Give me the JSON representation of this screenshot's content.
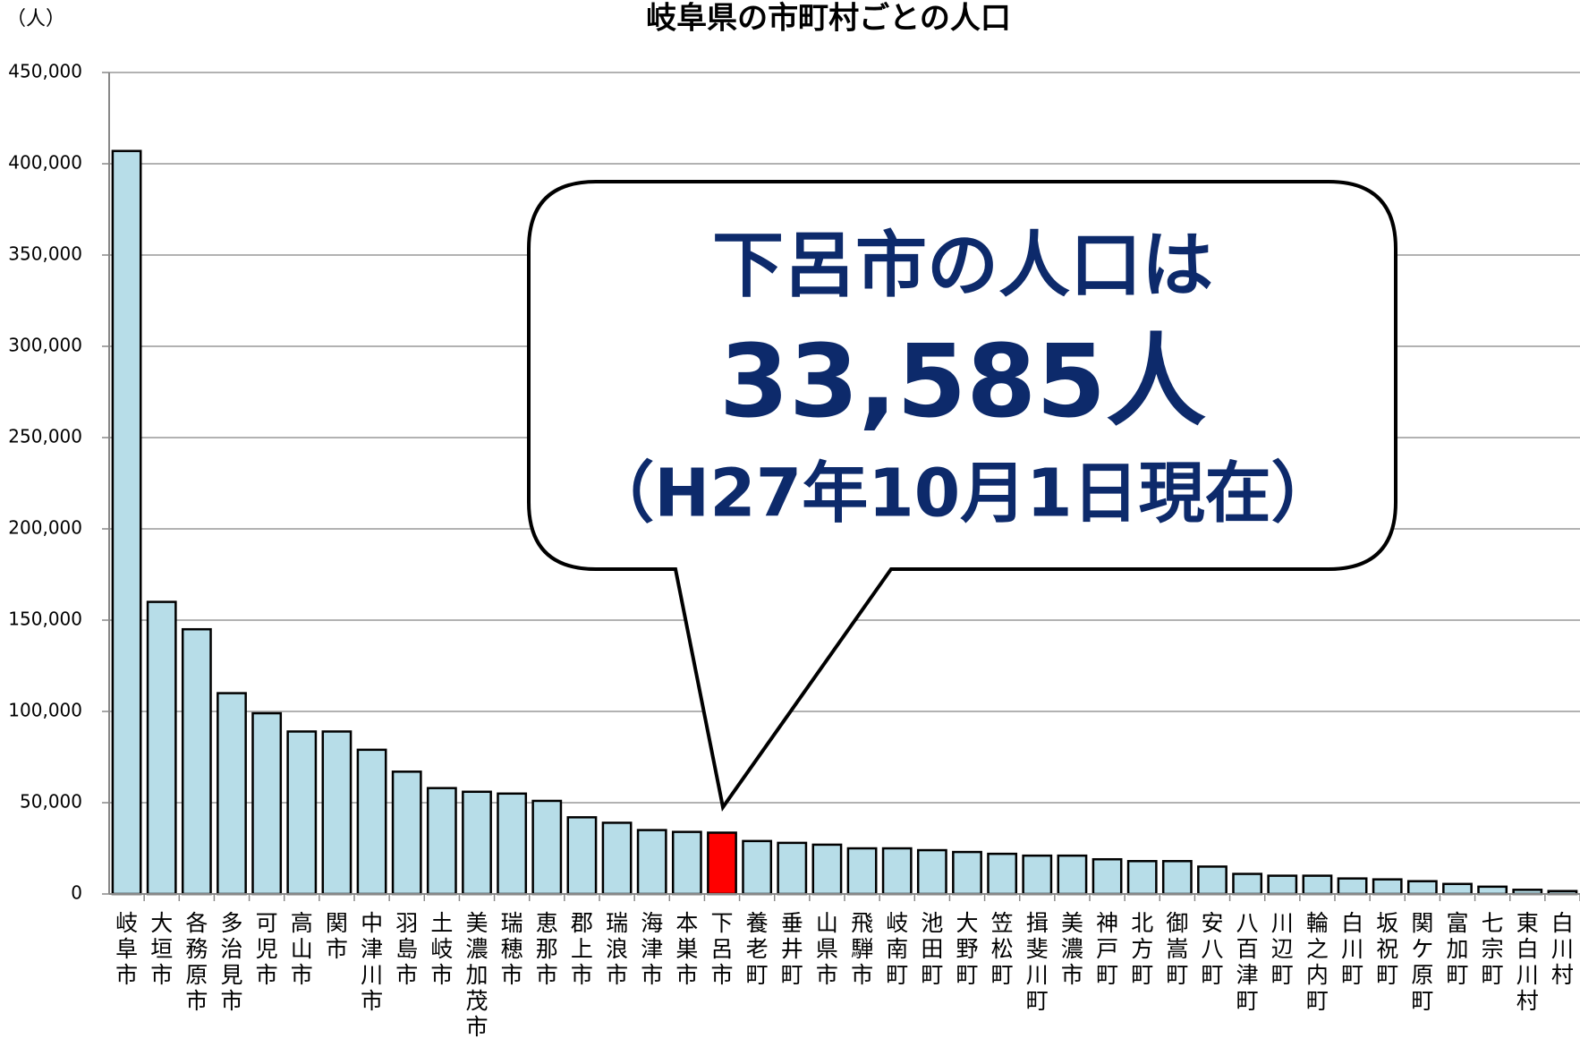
{
  "chart_data": {
    "type": "bar",
    "title": "岐阜県の市町村ごとの人口",
    "y_axis_label": "（人）",
    "categories": [
      "岐阜市",
      "大垣市",
      "各務原市",
      "多治見市",
      "可児市",
      "高山市",
      "関市",
      "中津川市",
      "羽島市",
      "土岐市",
      "美濃加茂市",
      "瑞穂市",
      "恵那市",
      "郡上市",
      "瑞浪市",
      "海津市",
      "本巣市",
      "下呂市",
      "養老町",
      "垂井町",
      "山県市",
      "飛騨市",
      "岐南町",
      "池田町",
      "大野町",
      "笠松町",
      "揖斐川町",
      "美濃市",
      "神戸町",
      "北方町",
      "御嵩町",
      "安八町",
      "八百津町",
      "川辺町",
      "輪之内町",
      "白川町",
      "坂祝町",
      "関ケ原町",
      "富加町",
      "七宗町",
      "東白川村",
      "白川村"
    ],
    "values": [
      407000,
      160000,
      145000,
      110000,
      99000,
      89000,
      89000,
      79000,
      67000,
      58000,
      56000,
      55000,
      51000,
      42000,
      39000,
      35000,
      34000,
      33585,
      29000,
      28000,
      27000,
      25000,
      25000,
      24000,
      23000,
      22000,
      21000,
      21000,
      19000,
      18000,
      18000,
      15000,
      11000,
      10000,
      10000,
      8500,
      8000,
      7000,
      5500,
      4000,
      2300,
      1600
    ],
    "bar_colors": [
      "#b7dde8",
      "#b7dde8",
      "#b7dde8",
      "#b7dde8",
      "#b7dde8",
      "#b7dde8",
      "#b7dde8",
      "#b7dde8",
      "#b7dde8",
      "#b7dde8",
      "#b7dde8",
      "#b7dde8",
      "#b7dde8",
      "#b7dde8",
      "#b7dde8",
      "#b7dde8",
      "#b7dde8",
      "#ff0000",
      "#b7dde8",
      "#b7dde8",
      "#b7dde8",
      "#b7dde8",
      "#b7dde8",
      "#b7dde8",
      "#b7dde8",
      "#b7dde8",
      "#b7dde8",
      "#b7dde8",
      "#b7dde8",
      "#b7dde8",
      "#b7dde8",
      "#b7dde8",
      "#b7dde8",
      "#b7dde8",
      "#b7dde8",
      "#b7dde8",
      "#b7dde8",
      "#b7dde8",
      "#b7dde8",
      "#b7dde8",
      "#b7dde8",
      "#b7dde8"
    ],
    "ylim": [
      0,
      450000
    ],
    "yticks": [
      0,
      {
        "value": 50000,
        "label": "50,000"
      },
      {
        "value": 100000,
        "label": "100,000"
      },
      {
        "value": 150000,
        "label": "150,000"
      },
      {
        "value": 200000,
        "label": "200,000"
      },
      {
        "value": 250000,
        "label": "250,000"
      },
      {
        "value": 300000,
        "label": "300,000"
      },
      {
        "value": 350000,
        "label": "350,000"
      },
      {
        "value": 400000,
        "label": "400,000"
      },
      {
        "value": 450000,
        "label": "450,000"
      }
    ],
    "grid": true,
    "callout": {
      "line1": "下呂市の人口は",
      "line2": "33,585人",
      "line3": "（H27年10月1日現在）"
    }
  }
}
